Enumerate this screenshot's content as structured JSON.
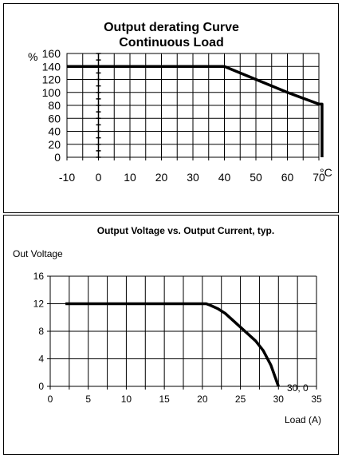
{
  "chart_data": [
    {
      "type": "line",
      "title": "Output derating Curve",
      "subtitle": "Continuous Load",
      "ylabel": "%",
      "xlabel": "°C",
      "xlim": [
        -10,
        70
      ],
      "ylim": [
        0,
        160
      ],
      "x_ticks": [
        "-10",
        "0",
        "10",
        "20",
        "30",
        "40",
        "50",
        "60",
        "70"
      ],
      "y_ticks": [
        "0",
        "20",
        "40",
        "60",
        "80",
        "100",
        "120",
        "140",
        "160"
      ],
      "grid": true,
      "series": [
        {
          "x": [
            -10,
            40,
            50,
            60,
            70,
            71,
            71
          ],
          "y": [
            140,
            140,
            120,
            100,
            82,
            82,
            0
          ]
        }
      ]
    },
    {
      "type": "line",
      "title": "Output Voltage vs. Output Current, typ.",
      "ylabel": "Out Voltage",
      "xlabel": "Load (A)",
      "xlim": [
        0,
        35
      ],
      "ylim": [
        0,
        16
      ],
      "x_ticks": [
        "0",
        "5",
        "10",
        "15",
        "20",
        "25",
        "30",
        "35"
      ],
      "y_ticks": [
        "0",
        "4",
        "8",
        "12",
        "16"
      ],
      "grid": true,
      "annotation": "30; 0",
      "series": [
        {
          "x": [
            2,
            20,
            20.5,
            21,
            22,
            23,
            24,
            25,
            26,
            27,
            28,
            29,
            30
          ],
          "y": [
            12,
            12,
            12,
            11.8,
            11.3,
            10.6,
            9.6,
            8.6,
            7.6,
            6.6,
            5.2,
            3.1,
            0
          ]
        }
      ]
    }
  ]
}
